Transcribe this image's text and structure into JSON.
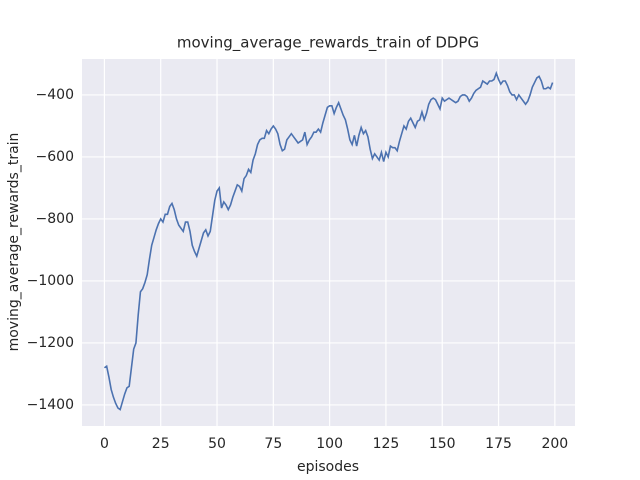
{
  "chart_data": {
    "type": "line",
    "title": "moving_average_rewards_train of DDPG",
    "xlabel": "episodes",
    "ylabel": "moving_average_rewards_train",
    "x": [
      0,
      1,
      2,
      3,
      4,
      5,
      6,
      7,
      8,
      9,
      10,
      11,
      12,
      13,
      14,
      15,
      16,
      17,
      18,
      19,
      20,
      21,
      22,
      23,
      24,
      25,
      26,
      27,
      28,
      29,
      30,
      31,
      32,
      33,
      34,
      35,
      36,
      37,
      38,
      39,
      40,
      41,
      42,
      43,
      44,
      45,
      46,
      47,
      48,
      49,
      50,
      51,
      52,
      53,
      54,
      55,
      56,
      57,
      58,
      59,
      60,
      61,
      62,
      63,
      64,
      65,
      66,
      67,
      68,
      69,
      70,
      71,
      72,
      73,
      74,
      75,
      76,
      77,
      78,
      79,
      80,
      81,
      82,
      83,
      84,
      85,
      86,
      87,
      88,
      89,
      90,
      91,
      92,
      93,
      94,
      95,
      96,
      97,
      98,
      99,
      100,
      101,
      102,
      103,
      104,
      105,
      106,
      107,
      108,
      109,
      110,
      111,
      112,
      113,
      114,
      115,
      116,
      117,
      118,
      119,
      120,
      121,
      122,
      123,
      124,
      125,
      126,
      127,
      128,
      129,
      130,
      131,
      132,
      133,
      134,
      135,
      136,
      137,
      138,
      139,
      140,
      141,
      142,
      143,
      144,
      145,
      146,
      147,
      148,
      149,
      150,
      151,
      152,
      153,
      154,
      155,
      156,
      157,
      158,
      159,
      160,
      161,
      162,
      163,
      164,
      165,
      166,
      167,
      168,
      169,
      170,
      171,
      172,
      173,
      174,
      175,
      176,
      177,
      178,
      179,
      180,
      181,
      182,
      183,
      184,
      185,
      186,
      187,
      188,
      189,
      190,
      191,
      192,
      193,
      194,
      195,
      196,
      197,
      198,
      199
    ],
    "series": [
      {
        "color": "#4c72b0",
        "values": [
          -1280,
          -1275,
          -1310,
          -1350,
          -1375,
          -1395,
          -1410,
          -1415,
          -1390,
          -1365,
          -1345,
          -1340,
          -1280,
          -1220,
          -1200,
          -1110,
          -1035,
          -1025,
          -1005,
          -980,
          -930,
          -885,
          -860,
          -835,
          -815,
          -800,
          -810,
          -785,
          -785,
          -760,
          -750,
          -770,
          -800,
          -820,
          -830,
          -840,
          -810,
          -810,
          -840,
          -885,
          -905,
          -920,
          -895,
          -870,
          -845,
          -835,
          -855,
          -840,
          -790,
          -740,
          -710,
          -700,
          -765,
          -745,
          -755,
          -770,
          -755,
          -730,
          -710,
          -690,
          -695,
          -710,
          -670,
          -660,
          -640,
          -650,
          -610,
          -590,
          -560,
          -545,
          -540,
          -540,
          -515,
          -525,
          -510,
          -500,
          -510,
          -525,
          -560,
          -580,
          -575,
          -545,
          -535,
          -525,
          -535,
          -545,
          -555,
          -550,
          -545,
          -520,
          -560,
          -545,
          -535,
          -520,
          -520,
          -510,
          -520,
          -490,
          -465,
          -440,
          -435,
          -435,
          -460,
          -440,
          -425,
          -445,
          -465,
          -480,
          -510,
          -545,
          -560,
          -530,
          -565,
          -530,
          -505,
          -525,
          -515,
          -535,
          -575,
          -605,
          -590,
          -600,
          -610,
          -585,
          -615,
          -585,
          -600,
          -565,
          -570,
          -570,
          -580,
          -550,
          -525,
          -500,
          -510,
          -485,
          -475,
          -490,
          -505,
          -485,
          -480,
          -455,
          -480,
          -460,
          -430,
          -415,
          -410,
          -415,
          -430,
          -445,
          -410,
          -420,
          -415,
          -410,
          -415,
          -420,
          -425,
          -420,
          -405,
          -400,
          -400,
          -405,
          -420,
          -410,
          -395,
          -385,
          -380,
          -375,
          -355,
          -360,
          -365,
          -355,
          -355,
          -350,
          -330,
          -350,
          -365,
          -355,
          -355,
          -370,
          -390,
          -400,
          -400,
          -415,
          -400,
          -410,
          -420,
          -430,
          -420,
          -400,
          -375,
          -360,
          -345,
          -340,
          -355,
          -380,
          -380,
          -375,
          -380,
          -360
        ]
      }
    ],
    "xlim": [
      -9.95,
      208.95
    ],
    "ylim": [
      -1468,
      -284
    ],
    "xticks": [
      0,
      25,
      50,
      75,
      100,
      125,
      150,
      175,
      200
    ],
    "yticks": [
      {
        "value": -1400,
        "label": "−1400"
      },
      {
        "value": -1200,
        "label": "−1200"
      },
      {
        "value": -1000,
        "label": "−1000"
      },
      {
        "value": -800,
        "label": "−800"
      },
      {
        "value": -600,
        "label": "−600"
      },
      {
        "value": -400,
        "label": "−400"
      }
    ],
    "grid": true
  }
}
